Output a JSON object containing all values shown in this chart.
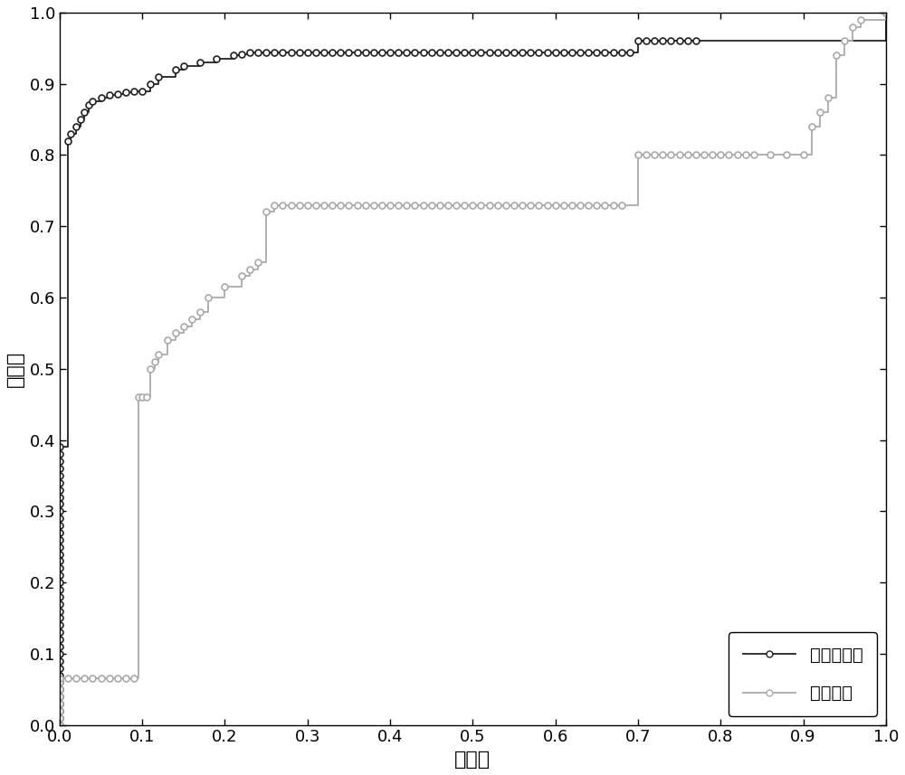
{
  "xlabel": "特异性",
  "ylabel": "敏感性",
  "xlim": [
    0,
    1
  ],
  "ylim": [
    0,
    1
  ],
  "xticks": [
    0,
    0.1,
    0.2,
    0.3,
    0.4,
    0.5,
    0.6,
    0.7,
    0.8,
    0.9,
    1
  ],
  "yticks": [
    0,
    0.1,
    0.2,
    0.3,
    0.4,
    0.5,
    0.6,
    0.7,
    0.8,
    0.9,
    1
  ],
  "legend1_label": "本发明方法",
  "legend2_label": "传统方法",
  "line1_color": "#222222",
  "line2_color": "#aaaaaa",
  "marker_size": 5,
  "line_width": 1.3,
  "curve1_x": [
    0.0,
    0.0,
    0.0,
    0.0,
    0.0,
    0.0,
    0.0,
    0.0,
    0.0,
    0.0,
    0.0,
    0.0,
    0.0,
    0.0,
    0.0,
    0.0,
    0.0,
    0.0,
    0.0,
    0.0,
    0.0,
    0.0,
    0.0,
    0.0,
    0.0,
    0.0,
    0.0,
    0.0,
    0.0,
    0.0,
    0.0,
    0.0,
    0.0,
    0.0,
    0.0,
    0.0,
    0.0,
    0.0,
    0.0,
    0.0,
    0.01,
    0.013,
    0.02,
    0.025,
    0.03,
    0.035,
    0.04,
    0.05,
    0.06,
    0.07,
    0.08,
    0.09,
    0.1,
    0.11,
    0.12,
    0.14,
    0.15,
    0.17,
    0.19,
    0.21,
    0.22,
    0.23,
    0.24,
    0.25,
    0.26,
    0.27,
    0.28,
    0.29,
    0.3,
    0.31,
    0.32,
    0.33,
    0.34,
    0.35,
    0.36,
    0.37,
    0.38,
    0.39,
    0.4,
    0.41,
    0.42,
    0.43,
    0.44,
    0.45,
    0.46,
    0.47,
    0.48,
    0.49,
    0.5,
    0.51,
    0.52,
    0.53,
    0.54,
    0.55,
    0.56,
    0.57,
    0.58,
    0.59,
    0.6,
    0.61,
    0.62,
    0.63,
    0.64,
    0.65,
    0.66,
    0.67,
    0.68,
    0.69,
    0.7,
    0.71,
    0.72,
    0.73,
    0.74,
    0.75,
    0.76,
    0.77,
    1.0
  ],
  "curve1_y": [
    0.0,
    0.01,
    0.02,
    0.03,
    0.04,
    0.05,
    0.06,
    0.07,
    0.08,
    0.09,
    0.1,
    0.11,
    0.12,
    0.13,
    0.14,
    0.15,
    0.16,
    0.17,
    0.18,
    0.19,
    0.2,
    0.21,
    0.22,
    0.23,
    0.24,
    0.25,
    0.26,
    0.27,
    0.28,
    0.29,
    0.3,
    0.31,
    0.32,
    0.33,
    0.34,
    0.35,
    0.36,
    0.37,
    0.38,
    0.39,
    0.82,
    0.83,
    0.84,
    0.85,
    0.86,
    0.87,
    0.875,
    0.88,
    0.885,
    0.886,
    0.888,
    0.889,
    0.89,
    0.9,
    0.91,
    0.92,
    0.925,
    0.93,
    0.935,
    0.94,
    0.942,
    0.944,
    0.944,
    0.944,
    0.944,
    0.944,
    0.944,
    0.944,
    0.944,
    0.944,
    0.944,
    0.944,
    0.944,
    0.944,
    0.944,
    0.944,
    0.944,
    0.944,
    0.944,
    0.944,
    0.944,
    0.944,
    0.944,
    0.944,
    0.944,
    0.944,
    0.944,
    0.944,
    0.944,
    0.944,
    0.944,
    0.944,
    0.944,
    0.944,
    0.944,
    0.944,
    0.944,
    0.944,
    0.944,
    0.944,
    0.944,
    0.944,
    0.944,
    0.944,
    0.944,
    0.944,
    0.944,
    0.944,
    0.96,
    0.96,
    0.96,
    0.96,
    0.96,
    0.96,
    0.96,
    0.96,
    1.0
  ],
  "curve2_x": [
    0.0,
    0.0,
    0.0,
    0.0,
    0.0,
    0.0,
    0.0,
    0.0,
    0.01,
    0.02,
    0.03,
    0.04,
    0.05,
    0.06,
    0.07,
    0.08,
    0.09,
    0.095,
    0.1,
    0.105,
    0.11,
    0.115,
    0.12,
    0.13,
    0.14,
    0.15,
    0.16,
    0.17,
    0.18,
    0.2,
    0.22,
    0.23,
    0.24,
    0.25,
    0.26,
    0.27,
    0.28,
    0.29,
    0.3,
    0.31,
    0.32,
    0.33,
    0.34,
    0.35,
    0.36,
    0.37,
    0.38,
    0.39,
    0.4,
    0.41,
    0.42,
    0.43,
    0.44,
    0.45,
    0.46,
    0.47,
    0.48,
    0.49,
    0.5,
    0.51,
    0.52,
    0.53,
    0.54,
    0.55,
    0.56,
    0.57,
    0.58,
    0.59,
    0.6,
    0.61,
    0.62,
    0.63,
    0.64,
    0.65,
    0.66,
    0.67,
    0.68,
    0.7,
    0.71,
    0.72,
    0.73,
    0.74,
    0.75,
    0.76,
    0.77,
    0.78,
    0.79,
    0.8,
    0.81,
    0.82,
    0.83,
    0.84,
    0.86,
    0.88,
    0.9,
    0.91,
    0.92,
    0.93,
    0.94,
    0.95,
    0.96,
    0.97,
    1.0
  ],
  "curve2_y": [
    0.0,
    0.01,
    0.02,
    0.03,
    0.04,
    0.05,
    0.06,
    0.065,
    0.065,
    0.065,
    0.065,
    0.065,
    0.065,
    0.065,
    0.065,
    0.065,
    0.065,
    0.46,
    0.46,
    0.46,
    0.5,
    0.51,
    0.52,
    0.54,
    0.55,
    0.56,
    0.57,
    0.58,
    0.6,
    0.615,
    0.63,
    0.64,
    0.65,
    0.72,
    0.73,
    0.73,
    0.73,
    0.73,
    0.73,
    0.73,
    0.73,
    0.73,
    0.73,
    0.73,
    0.73,
    0.73,
    0.73,
    0.73,
    0.73,
    0.73,
    0.73,
    0.73,
    0.73,
    0.73,
    0.73,
    0.73,
    0.73,
    0.73,
    0.73,
    0.73,
    0.73,
    0.73,
    0.73,
    0.73,
    0.73,
    0.73,
    0.73,
    0.73,
    0.73,
    0.73,
    0.73,
    0.73,
    0.73,
    0.73,
    0.73,
    0.73,
    0.73,
    0.8,
    0.8,
    0.8,
    0.8,
    0.8,
    0.8,
    0.8,
    0.8,
    0.8,
    0.8,
    0.8,
    0.8,
    0.8,
    0.8,
    0.8,
    0.8,
    0.8,
    0.8,
    0.84,
    0.86,
    0.88,
    0.94,
    0.96,
    0.98,
    0.99,
    1.0
  ]
}
